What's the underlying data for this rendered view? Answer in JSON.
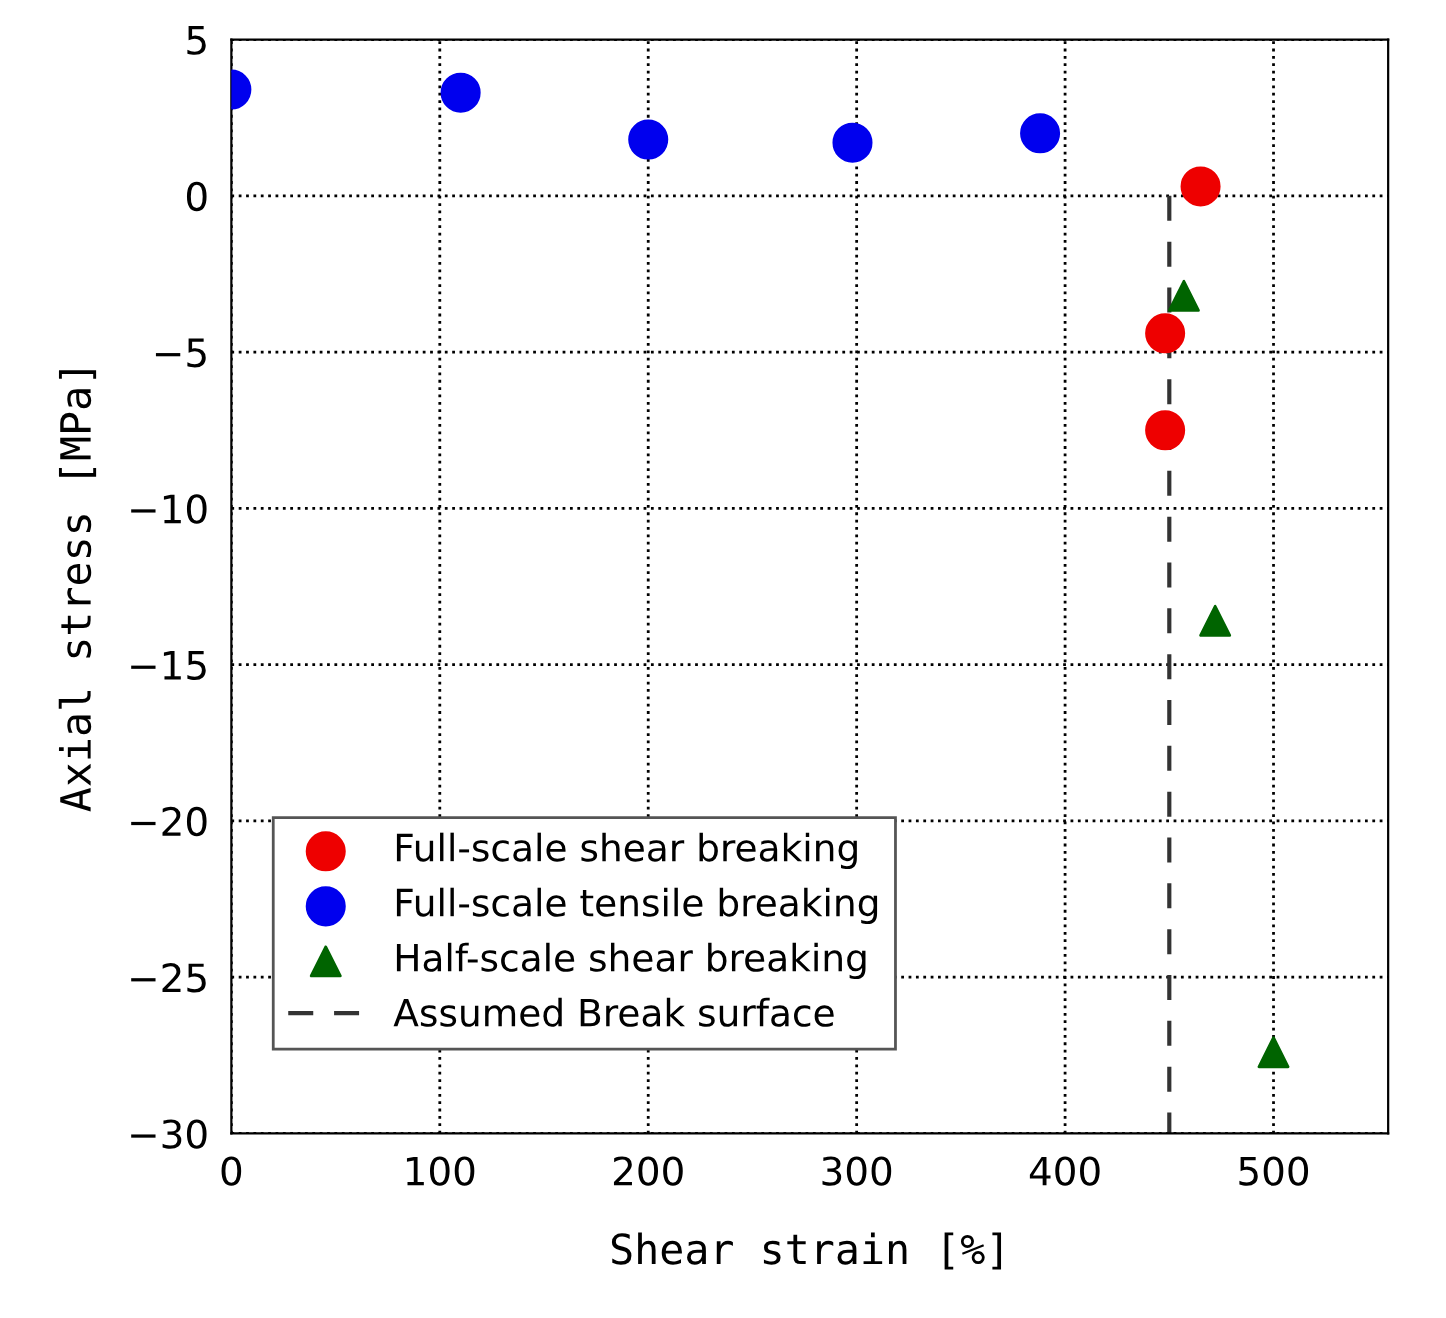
{
  "chart_data": {
    "type": "scatter",
    "xlabel": "Shear strain [%]",
    "ylabel": "Axial stress [MPa]",
    "xlim": [
      0,
      555
    ],
    "ylim": [
      -30,
      5
    ],
    "xticks": [
      0,
      100,
      200,
      300,
      400,
      500
    ],
    "yticks": [
      -30,
      -25,
      -20,
      -15,
      -10,
      -5,
      0,
      5
    ],
    "grid": true,
    "legend": "bottom left",
    "series": [
      {
        "name": "Full-scale shear breaking",
        "color": "#ee0000",
        "marker": "circle",
        "x": [
          465,
          448,
          448
        ],
        "values": [
          0.3,
          -4.4,
          -7.5
        ]
      },
      {
        "name": "Full-scale tensile breaking",
        "color": "#0000ee",
        "marker": "circle",
        "x": [
          0,
          110,
          200,
          298,
          388
        ],
        "values": [
          3.4,
          3.3,
          1.8,
          1.7,
          2.0
        ]
      },
      {
        "name": "Half-scale shear breaking",
        "color": "#006400",
        "marker": "triangle",
        "x": [
          457,
          472,
          500
        ],
        "values": [
          -3.2,
          -13.6,
          -27.4
        ]
      },
      {
        "name": "Assumed Break surface",
        "type": "line",
        "color": "#333333",
        "line_style": "dashed",
        "marker": "none",
        "x": [
          450,
          450
        ],
        "values": [
          0,
          -30
        ]
      }
    ]
  }
}
